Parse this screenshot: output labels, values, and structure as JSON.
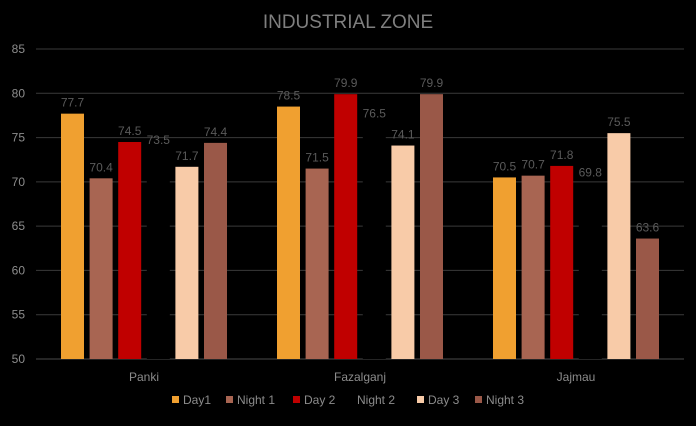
{
  "chart_data": {
    "type": "bar",
    "title": "INDUSTRIAL ZONE",
    "categories": [
      "Panki",
      "Fazalganj",
      "Jajmau"
    ],
    "ylim": [
      50,
      85
    ],
    "yticks": [
      50,
      55,
      60,
      65,
      70,
      75,
      80,
      85
    ],
    "grid": true,
    "legend_position": "bottom",
    "series": [
      {
        "name": "Day1",
        "color": "#f0a030",
        "values": [
          77.7,
          78.5,
          70.5
        ]
      },
      {
        "name": "Night 1",
        "color": "#a86552",
        "values": [
          70.4,
          71.5,
          70.7
        ]
      },
      {
        "name": "Day 2",
        "color": "#c00000",
        "values": [
          74.5,
          79.9,
          71.8
        ]
      },
      {
        "name": "Night 2",
        "color": "#000000",
        "values": [
          73.5,
          76.5,
          69.8
        ]
      },
      {
        "name": "Day 3",
        "color": "#f8cba8",
        "values": [
          71.7,
          74.1,
          75.5
        ]
      },
      {
        "name": "Night 3",
        "color": "#9a5848",
        "values": [
          74.4,
          79.9,
          63.6
        ]
      }
    ]
  }
}
